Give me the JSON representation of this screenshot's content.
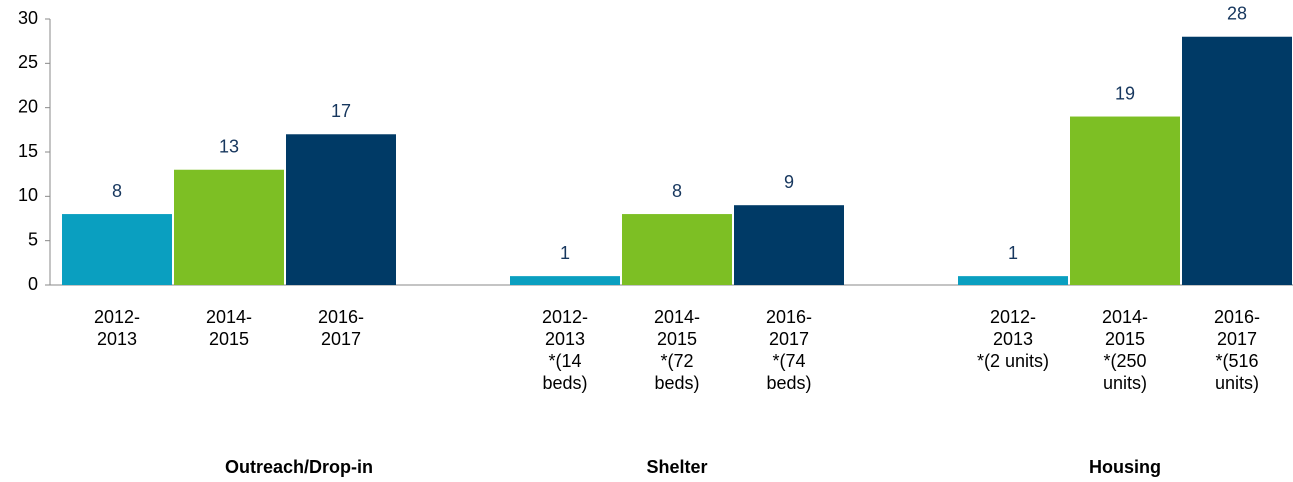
{
  "chart_data": {
    "type": "bar",
    "ylim": [
      0,
      30
    ],
    "yticks": [
      0,
      5,
      10,
      15,
      20,
      25,
      30
    ],
    "colors": [
      "#0a9fc0",
      "#7dbf24",
      "#003a66"
    ],
    "groups": [
      {
        "name": "Outreach/Drop-in",
        "bars": [
          {
            "label": [
              "2012-",
              "2013"
            ],
            "value": 8
          },
          {
            "label": [
              "2014-",
              "2015"
            ],
            "value": 13
          },
          {
            "label": [
              "2016-",
              "2017"
            ],
            "value": 17
          }
        ]
      },
      {
        "name": "Shelter",
        "bars": [
          {
            "label": [
              "2012-",
              "2013",
              "*(14",
              "beds)"
            ],
            "value": 1
          },
          {
            "label": [
              "2014-",
              "2015",
              "*(72",
              "beds)"
            ],
            "value": 8
          },
          {
            "label": [
              "2016-",
              "2017",
              "*(74",
              "beds)"
            ],
            "value": 9
          }
        ]
      },
      {
        "name": "Housing",
        "bars": [
          {
            "label": [
              "2012-",
              "2013",
              "*(2 units)"
            ],
            "value": 1
          },
          {
            "label": [
              "2014-",
              "2015",
              "*(250",
              "units)"
            ],
            "value": 19
          },
          {
            "label": [
              "2016-",
              "2017",
              "*(516",
              "units)"
            ],
            "value": 28
          }
        ]
      }
    ]
  }
}
